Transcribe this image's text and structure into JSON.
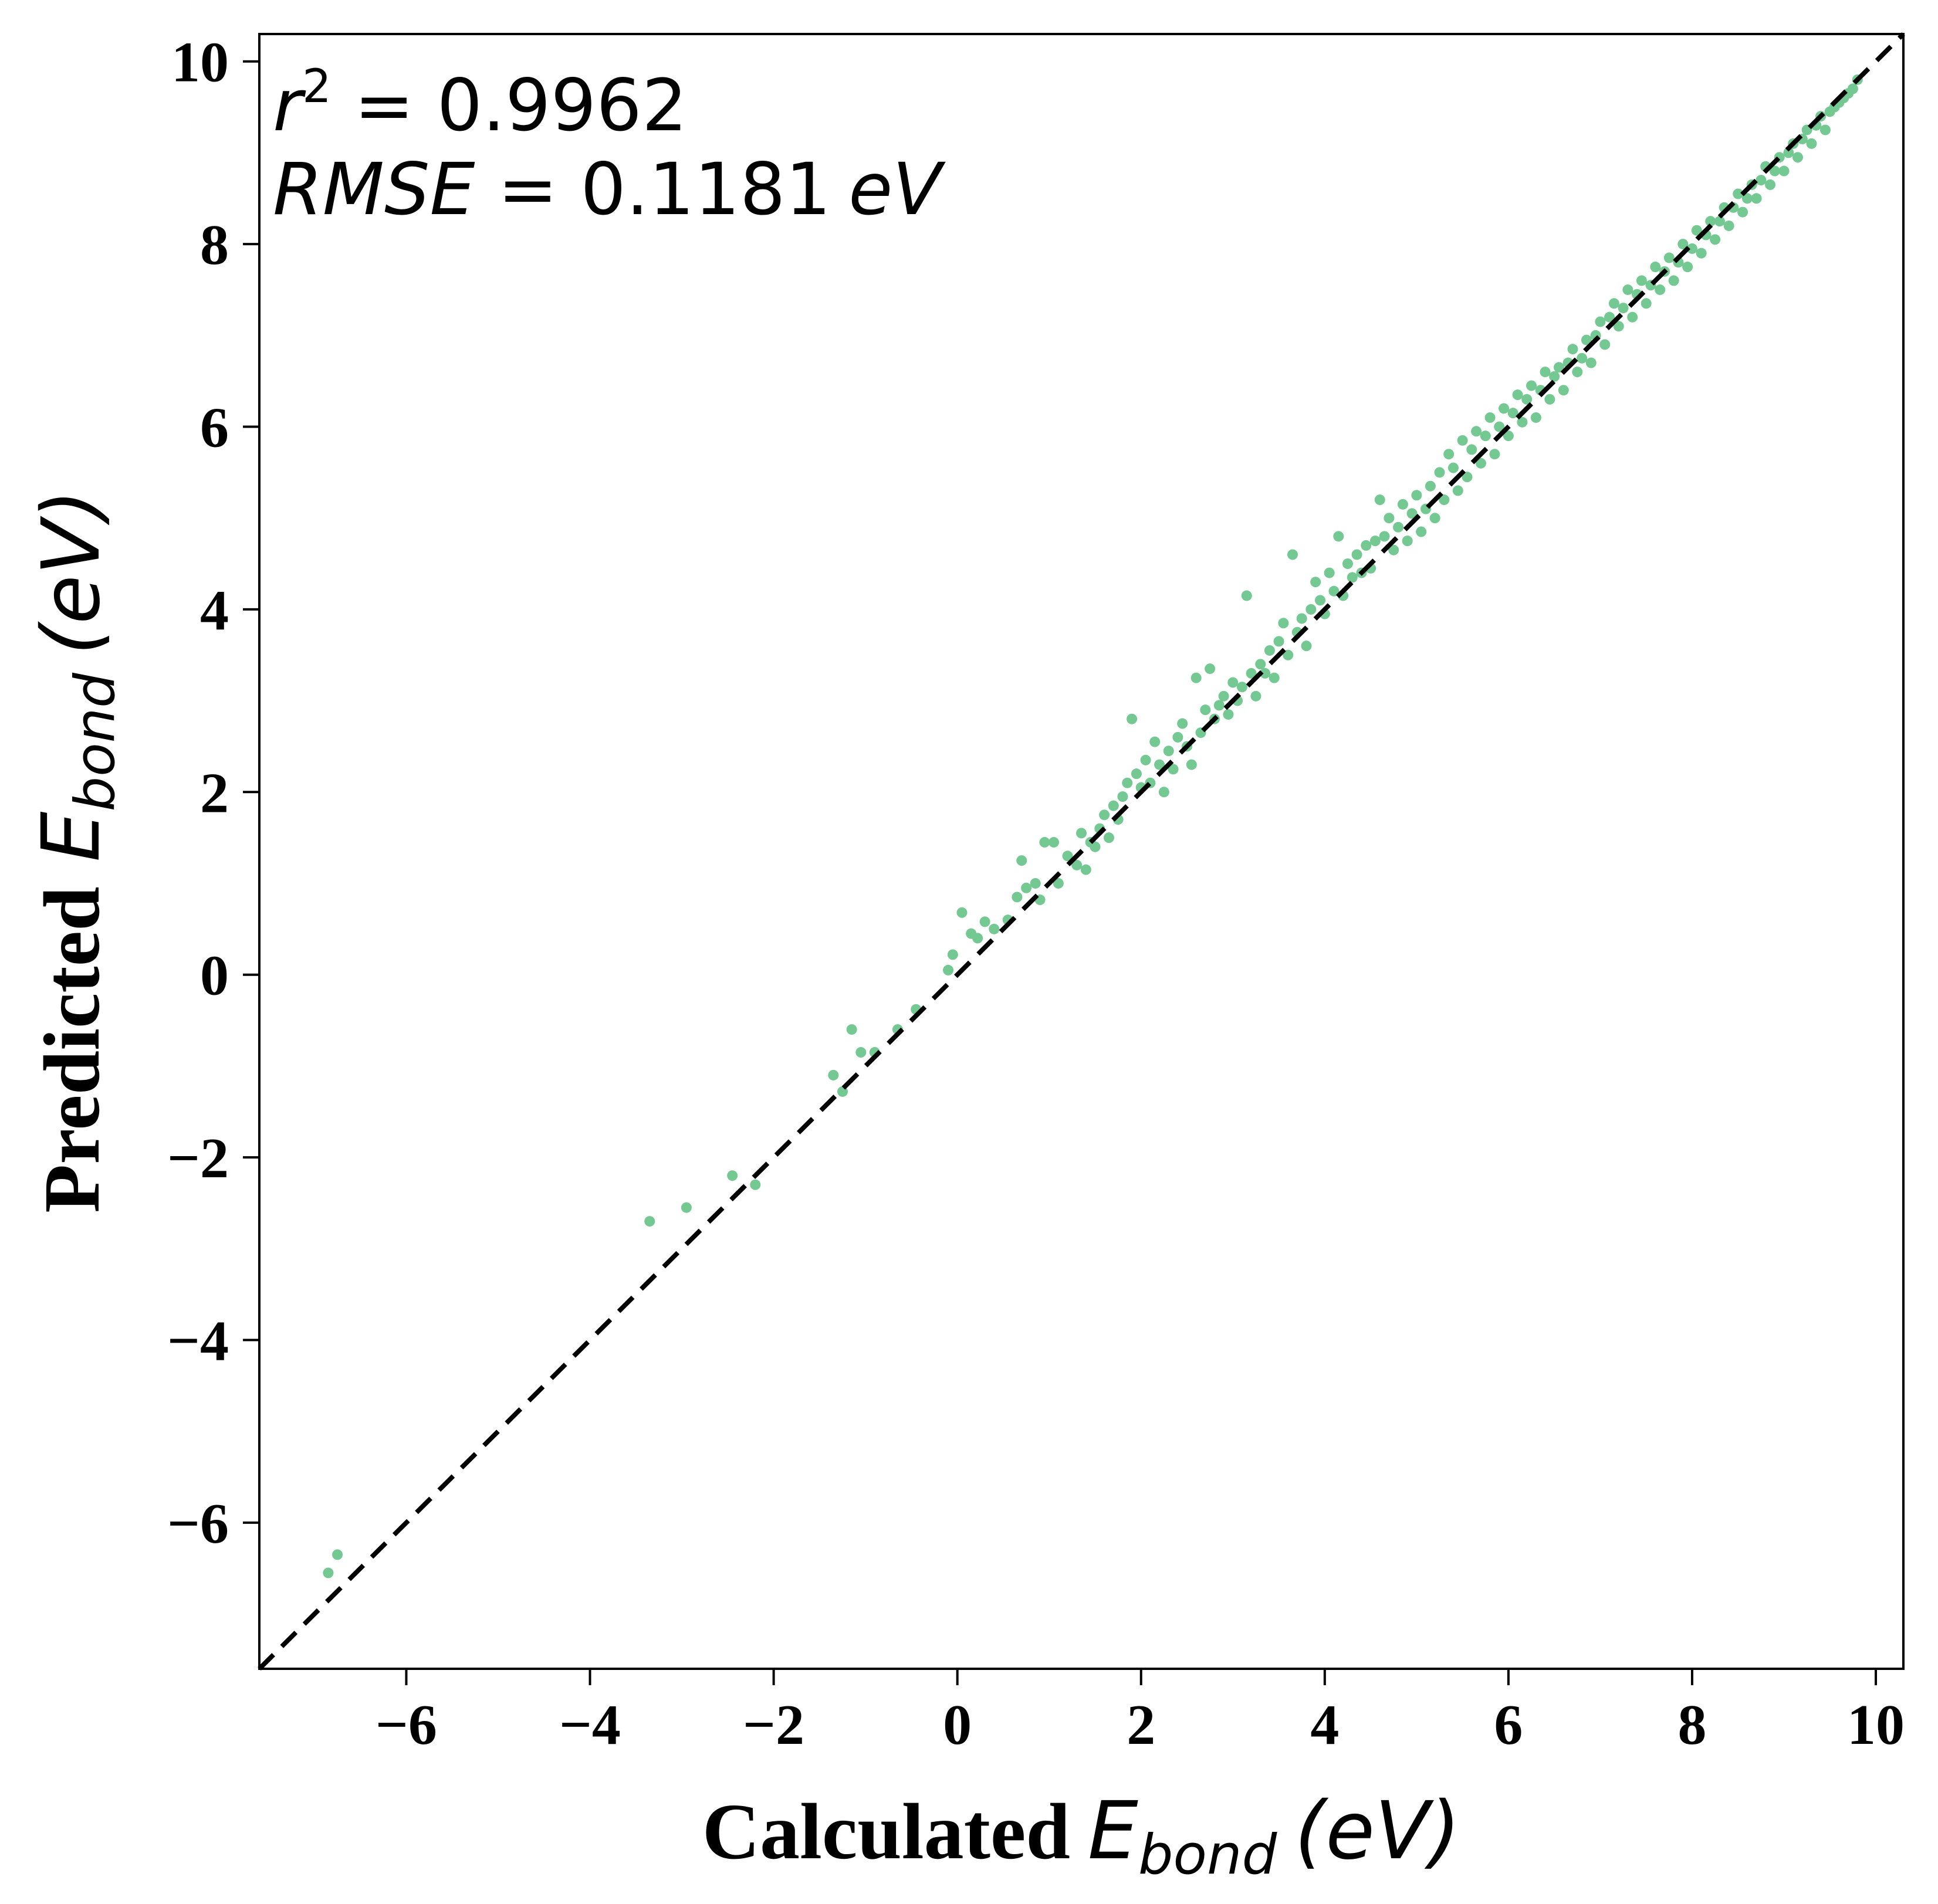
{
  "chart_data": {
    "type": "scatter",
    "xlabel": {
      "prefix": "Calculated",
      "symbol": "E",
      "subscript": "bond",
      "unit": "(eV)"
    },
    "ylabel": {
      "prefix": "Predicted",
      "symbol": "E",
      "subscript": "bond",
      "unit": "(eV)"
    },
    "xlim": [
      -7.6,
      10.3
    ],
    "ylim": [
      -7.6,
      10.3
    ],
    "x_ticks": [
      -6,
      -4,
      -2,
      0,
      2,
      4,
      6,
      8,
      10
    ],
    "y_ticks": [
      -6,
      -4,
      -2,
      0,
      2,
      4,
      6,
      8,
      10
    ],
    "x_tick_labels": [
      "−6",
      "−4",
      "−2",
      "0",
      "2",
      "4",
      "6",
      "8",
      "10"
    ],
    "y_tick_labels": [
      "−6",
      "−4",
      "−2",
      "0",
      "2",
      "4",
      "6",
      "8",
      "10"
    ],
    "grid": false,
    "legend": "none",
    "annotations": {
      "r2_symbol": "r",
      "r2_exponent": "2",
      "r2_equals": " = ",
      "r2_value": "0.9962",
      "rmse_symbol": "RMSE",
      "rmse_equals": " = ",
      "rmse_value": "0.1181",
      "rmse_unit": "eV"
    },
    "point_color": "#74c892",
    "reference_line": {
      "style": "dashed",
      "color": "#000000",
      "from": [
        -7.6,
        -7.6
      ],
      "to": [
        10.3,
        10.3
      ]
    },
    "points": [
      [
        -6.85,
        -6.55
      ],
      [
        -6.75,
        -6.35
      ],
      [
        -3.35,
        -2.7
      ],
      [
        -2.95,
        -2.55
      ],
      [
        -2.45,
        -2.2
      ],
      [
        -2.2,
        -2.3
      ],
      [
        -1.35,
        -1.1
      ],
      [
        -1.25,
        -1.28
      ],
      [
        -1.15,
        -0.6
      ],
      [
        -1.05,
        -0.85
      ],
      [
        -0.9,
        -0.85
      ],
      [
        -0.65,
        -0.6
      ],
      [
        -0.45,
        -0.38
      ],
      [
        -0.1,
        0.05
      ],
      [
        -0.05,
        0.22
      ],
      [
        0.05,
        0.68
      ],
      [
        0.15,
        0.45
      ],
      [
        0.22,
        0.4
      ],
      [
        0.3,
        0.58
      ],
      [
        0.4,
        0.5
      ],
      [
        0.55,
        0.6
      ],
      [
        0.65,
        0.85
      ],
      [
        0.7,
        1.25
      ],
      [
        0.75,
        0.95
      ],
      [
        0.85,
        1.0
      ],
      [
        0.9,
        0.82
      ],
      [
        0.95,
        1.45
      ],
      [
        1.05,
        1.45
      ],
      [
        1.1,
        1.0
      ],
      [
        1.2,
        1.3
      ],
      [
        1.3,
        1.2
      ],
      [
        1.35,
        1.55
      ],
      [
        1.4,
        1.15
      ],
      [
        1.45,
        1.45
      ],
      [
        1.5,
        1.4
      ],
      [
        1.55,
        1.6
      ],
      [
        1.6,
        1.75
      ],
      [
        1.65,
        1.5
      ],
      [
        1.7,
        1.85
      ],
      [
        1.75,
        1.7
      ],
      [
        1.8,
        1.95
      ],
      [
        1.85,
        2.1
      ],
      [
        1.9,
        2.8
      ],
      [
        1.95,
        2.2
      ],
      [
        2.0,
        2.05
      ],
      [
        2.05,
        2.35
      ],
      [
        2.1,
        2.1
      ],
      [
        2.15,
        2.55
      ],
      [
        2.2,
        2.3
      ],
      [
        2.25,
        2.0
      ],
      [
        2.3,
        2.45
      ],
      [
        2.35,
        2.25
      ],
      [
        2.4,
        2.6
      ],
      [
        2.45,
        2.75
      ],
      [
        2.5,
        2.5
      ],
      [
        2.55,
        2.3
      ],
      [
        2.6,
        3.25
      ],
      [
        2.65,
        2.65
      ],
      [
        2.7,
        2.9
      ],
      [
        2.75,
        3.35
      ],
      [
        2.8,
        2.8
      ],
      [
        2.85,
        2.95
      ],
      [
        2.9,
        3.05
      ],
      [
        2.95,
        2.85
      ],
      [
        3.0,
        3.2
      ],
      [
        3.05,
        3.0
      ],
      [
        3.1,
        3.15
      ],
      [
        3.15,
        4.15
      ],
      [
        3.2,
        3.3
      ],
      [
        3.25,
        3.05
      ],
      [
        3.3,
        3.4
      ],
      [
        3.35,
        3.3
      ],
      [
        3.4,
        3.55
      ],
      [
        3.45,
        3.25
      ],
      [
        3.5,
        3.65
      ],
      [
        3.55,
        3.85
      ],
      [
        3.6,
        3.5
      ],
      [
        3.65,
        4.6
      ],
      [
        3.7,
        3.75
      ],
      [
        3.75,
        3.9
      ],
      [
        3.8,
        3.6
      ],
      [
        3.85,
        4.0
      ],
      [
        3.9,
        4.3
      ],
      [
        3.95,
        4.1
      ],
      [
        4.0,
        3.95
      ],
      [
        4.05,
        4.4
      ],
      [
        4.1,
        4.2
      ],
      [
        4.15,
        4.8
      ],
      [
        4.2,
        4.15
      ],
      [
        4.25,
        4.5
      ],
      [
        4.3,
        4.35
      ],
      [
        4.35,
        4.6
      ],
      [
        4.4,
        4.4
      ],
      [
        4.45,
        4.7
      ],
      [
        4.5,
        4.45
      ],
      [
        4.55,
        4.75
      ],
      [
        4.6,
        5.2
      ],
      [
        4.65,
        4.8
      ],
      [
        4.7,
        5.0
      ],
      [
        4.75,
        4.65
      ],
      [
        4.8,
        4.9
      ],
      [
        4.85,
        5.15
      ],
      [
        4.9,
        4.75
      ],
      [
        4.95,
        5.05
      ],
      [
        5.0,
        5.25
      ],
      [
        5.05,
        4.85
      ],
      [
        5.1,
        5.1
      ],
      [
        5.15,
        5.35
      ],
      [
        5.2,
        5.0
      ],
      [
        5.25,
        5.5
      ],
      [
        5.3,
        5.2
      ],
      [
        5.35,
        5.7
      ],
      [
        5.4,
        5.55
      ],
      [
        5.45,
        5.3
      ],
      [
        5.5,
        5.85
      ],
      [
        5.55,
        5.45
      ],
      [
        5.6,
        5.75
      ],
      [
        5.65,
        5.95
      ],
      [
        5.7,
        5.6
      ],
      [
        5.75,
        5.9
      ],
      [
        5.8,
        6.1
      ],
      [
        5.85,
        5.7
      ],
      [
        5.9,
        6.0
      ],
      [
        5.95,
        6.2
      ],
      [
        6.0,
        5.9
      ],
      [
        6.05,
        6.15
      ],
      [
        6.1,
        6.35
      ],
      [
        6.15,
        6.05
      ],
      [
        6.2,
        6.3
      ],
      [
        6.25,
        6.45
      ],
      [
        6.3,
        6.1
      ],
      [
        6.35,
        6.4
      ],
      [
        6.4,
        6.6
      ],
      [
        6.45,
        6.3
      ],
      [
        6.5,
        6.55
      ],
      [
        6.55,
        6.65
      ],
      [
        6.6,
        6.4
      ],
      [
        6.65,
        6.7
      ],
      [
        6.7,
        6.85
      ],
      [
        6.75,
        6.6
      ],
      [
        6.8,
        6.75
      ],
      [
        6.85,
        6.95
      ],
      [
        6.9,
        6.7
      ],
      [
        6.95,
        7.0
      ],
      [
        7.0,
        7.15
      ],
      [
        7.05,
        6.9
      ],
      [
        7.1,
        7.2
      ],
      [
        7.15,
        7.35
      ],
      [
        7.2,
        7.1
      ],
      [
        7.25,
        7.3
      ],
      [
        7.3,
        7.5
      ],
      [
        7.35,
        7.2
      ],
      [
        7.4,
        7.45
      ],
      [
        7.45,
        7.6
      ],
      [
        7.5,
        7.35
      ],
      [
        7.55,
        7.55
      ],
      [
        7.6,
        7.75
      ],
      [
        7.65,
        7.5
      ],
      [
        7.7,
        7.7
      ],
      [
        7.75,
        7.85
      ],
      [
        7.8,
        7.6
      ],
      [
        7.85,
        7.8
      ],
      [
        7.9,
        8.0
      ],
      [
        7.95,
        7.75
      ],
      [
        8.0,
        7.95
      ],
      [
        8.05,
        8.15
      ],
      [
        8.1,
        7.9
      ],
      [
        8.15,
        8.1
      ],
      [
        8.2,
        8.25
      ],
      [
        8.25,
        8.05
      ],
      [
        8.3,
        8.25
      ],
      [
        8.35,
        8.4
      ],
      [
        8.4,
        8.2
      ],
      [
        8.45,
        8.4
      ],
      [
        8.5,
        8.55
      ],
      [
        8.55,
        8.35
      ],
      [
        8.6,
        8.5
      ],
      [
        8.65,
        8.65
      ],
      [
        8.7,
        8.5
      ],
      [
        8.75,
        8.7
      ],
      [
        8.8,
        8.85
      ],
      [
        8.85,
        8.65
      ],
      [
        8.9,
        8.8
      ],
      [
        8.95,
        8.95
      ],
      [
        9.0,
        8.8
      ],
      [
        9.05,
        9.0
      ],
      [
        9.1,
        9.1
      ],
      [
        9.15,
        8.95
      ],
      [
        9.2,
        9.15
      ],
      [
        9.25,
        9.25
      ],
      [
        9.3,
        9.1
      ],
      [
        9.35,
        9.3
      ],
      [
        9.4,
        9.4
      ],
      [
        9.45,
        9.25
      ],
      [
        9.5,
        9.45
      ],
      [
        9.55,
        9.5
      ],
      [
        9.6,
        9.55
      ],
      [
        9.65,
        9.6
      ],
      [
        9.7,
        9.65
      ],
      [
        9.75,
        9.7
      ],
      [
        9.8,
        9.8
      ]
    ]
  }
}
